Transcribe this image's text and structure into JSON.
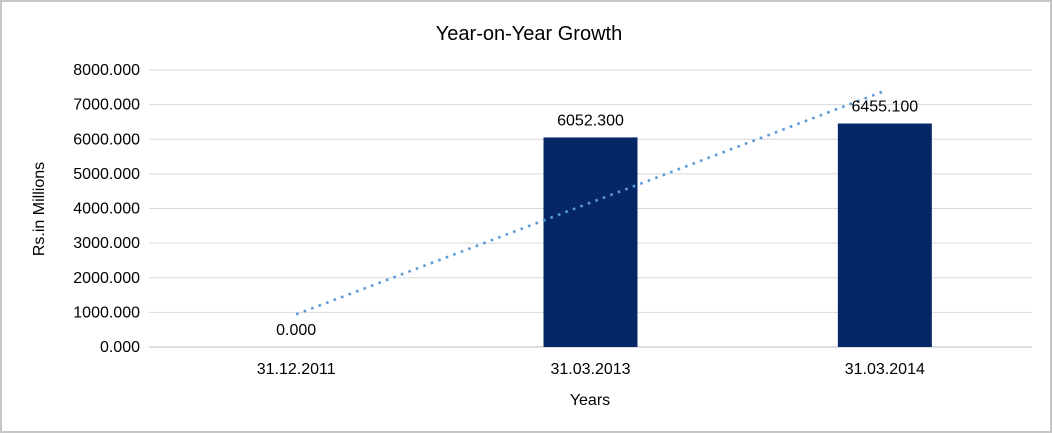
{
  "chart_data": {
    "type": "bar",
    "title": "Year-on-Year Growth",
    "categories": [
      "31.12.2011",
      "31.03.2013",
      "31.03.2014"
    ],
    "values": [
      0.0,
      6052.3,
      6455.1
    ],
    "data_labels": [
      "0.000",
      "6052.300",
      "6455.100"
    ],
    "xlabel": "Years",
    "ylabel": "Rs.in Millions",
    "ylim": [
      0,
      8000
    ],
    "ytick_interval": 1000,
    "ytick_labels": [
      "0.000",
      "1000.000",
      "2000.000",
      "3000.000",
      "4000.000",
      "5000.000",
      "6000.000",
      "7000.000",
      "8000.000"
    ],
    "grid": true,
    "legend": "none",
    "trendline": {
      "style": "dotted",
      "shape": "linear",
      "start_value": 941.6,
      "end_value": 7396.7
    },
    "colors": {
      "bar": "#052767",
      "trendline": "#5B9BD5",
      "gridline": "#D9D9D9",
      "axis_line": "#BFBFBF",
      "text": "#000000"
    }
  }
}
